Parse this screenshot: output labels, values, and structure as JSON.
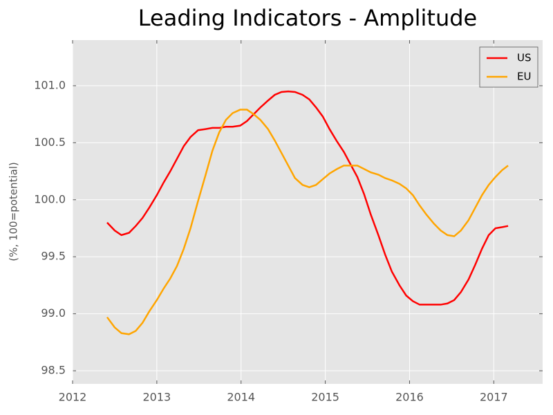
{
  "chart_data": {
    "type": "line",
    "title": "Leading Indicators - Amplitude",
    "y_label": "(%, 100=potential)",
    "x": [
      2012.41,
      2012.5,
      2012.58,
      2012.67,
      2012.75,
      2012.83,
      2012.91,
      2013.0,
      2013.08,
      2013.16,
      2013.24,
      2013.32,
      2013.4,
      2013.49,
      2013.58,
      2013.66,
      2013.74,
      2013.82,
      2013.9,
      2013.99,
      2014.07,
      2014.15,
      2014.23,
      2014.32,
      2014.4,
      2014.48,
      2014.56,
      2014.64,
      2014.73,
      2014.81,
      2014.89,
      2014.97,
      2015.05,
      2015.14,
      2015.22,
      2015.3,
      2015.38,
      2015.46,
      2015.54,
      2015.63,
      2015.71,
      2015.79,
      2015.88,
      2015.96,
      2016.04,
      2016.12,
      2016.2,
      2016.29,
      2016.37,
      2016.45,
      2016.53,
      2016.61,
      2016.7,
      2016.78,
      2016.86,
      2016.94,
      2017.02,
      2017.1,
      2017.17
    ],
    "series": [
      {
        "name": "US",
        "color": "#ff0000",
        "values": [
          99.8,
          99.73,
          99.69,
          99.71,
          99.77,
          99.84,
          99.93,
          100.04,
          100.15,
          100.25,
          100.36,
          100.47,
          100.55,
          100.61,
          100.62,
          100.63,
          100.63,
          100.64,
          100.64,
          100.65,
          100.69,
          100.75,
          100.81,
          100.87,
          100.92,
          100.945,
          100.95,
          100.945,
          100.92,
          100.88,
          100.81,
          100.73,
          100.62,
          100.51,
          100.42,
          100.31,
          100.2,
          100.05,
          99.87,
          99.69,
          99.52,
          99.37,
          99.25,
          99.16,
          99.11,
          99.08,
          99.08,
          99.08,
          99.08,
          99.09,
          99.12,
          99.19,
          99.3,
          99.43,
          99.57,
          99.69,
          99.75,
          99.76,
          99.77
        ]
      },
      {
        "name": "EU",
        "color": "#ffa500",
        "values": [
          98.97,
          98.88,
          98.83,
          98.82,
          98.85,
          98.92,
          99.02,
          99.12,
          99.22,
          99.31,
          99.42,
          99.57,
          99.75,
          99.99,
          100.22,
          100.43,
          100.59,
          100.7,
          100.76,
          100.79,
          100.79,
          100.75,
          100.7,
          100.62,
          100.52,
          100.41,
          100.3,
          100.19,
          100.13,
          100.11,
          100.13,
          100.18,
          100.23,
          100.27,
          100.3,
          100.3,
          100.3,
          100.27,
          100.24,
          100.22,
          100.19,
          100.17,
          100.14,
          100.1,
          100.04,
          99.95,
          99.87,
          99.79,
          99.73,
          99.69,
          99.68,
          99.73,
          99.82,
          99.93,
          100.04,
          100.13,
          100.2,
          100.26,
          100.3
        ]
      }
    ],
    "xlim": [
      2012,
      2017.58
    ],
    "xticks": [
      2012,
      2013,
      2014,
      2015,
      2016,
      2017
    ],
    "ylim": [
      98.385,
      101.4
    ],
    "yticks": [
      98.5,
      {
        "value": 99.0,
        "label": "99.0"
      },
      99.5,
      {
        "value": 100.0,
        "label": "100.0"
      },
      100.5,
      {
        "value": 101.0,
        "label": "101.0"
      }
    ],
    "grid": true,
    "legend": "upper right"
  }
}
